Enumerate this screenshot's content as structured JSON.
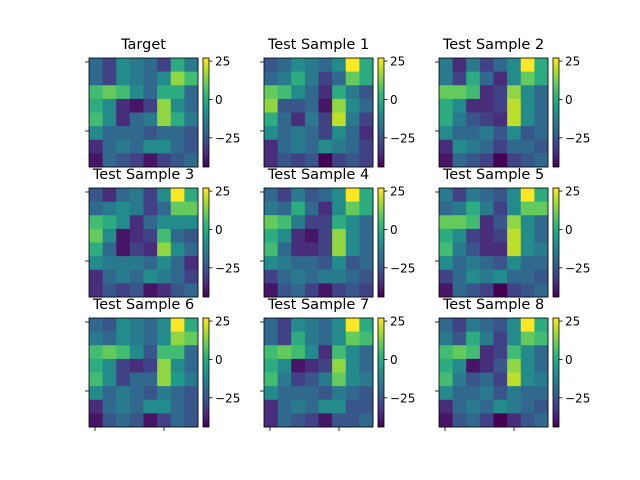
{
  "chart_data": [
    {
      "type": "heatmap",
      "title": "Target",
      "colorbar_ticks": [
        25,
        0,
        -25
      ],
      "vmin": -44,
      "vmax": 27,
      "values": [
        [
          -20,
          -30,
          -10,
          -15,
          -20,
          -30,
          0,
          -15
        ],
        [
          -20,
          -30,
          -10,
          -15,
          -20,
          -10,
          15,
          5
        ],
        [
          5,
          10,
          5,
          -10,
          -20,
          0,
          0,
          -20
        ],
        [
          0,
          -10,
          -35,
          -40,
          -30,
          15,
          -10,
          -20
        ],
        [
          5,
          -10,
          -35,
          -20,
          -15,
          15,
          0,
          -15
        ],
        [
          -10,
          -20,
          -20,
          -20,
          -25,
          -20,
          -20,
          -25
        ],
        [
          -35,
          -20,
          -15,
          -20,
          -10,
          -10,
          -20,
          -25
        ],
        [
          -40,
          -20,
          -25,
          -30,
          -40,
          -30,
          -25,
          -20
        ]
      ]
    },
    {
      "type": "heatmap",
      "title": "Test Sample 1",
      "colorbar_ticks": [
        25,
        0,
        -25
      ],
      "vmin": -44,
      "vmax": 27,
      "values": [
        [
          -25,
          -20,
          -10,
          -15,
          -20,
          -10,
          27,
          0
        ],
        [
          -20,
          -15,
          0,
          -15,
          -30,
          -20,
          10,
          0
        ],
        [
          10,
          5,
          -10,
          -20,
          -35,
          0,
          -15,
          -25
        ],
        [
          15,
          -25,
          -25,
          -20,
          -40,
          15,
          -10,
          -20
        ],
        [
          0,
          -20,
          -35,
          -15,
          -30,
          20,
          -15,
          -30
        ],
        [
          -10,
          -20,
          -15,
          -20,
          -30,
          -10,
          -20,
          -35
        ],
        [
          -35,
          -20,
          -15,
          -20,
          -10,
          -15,
          -20,
          -30
        ],
        [
          -35,
          -25,
          -30,
          -25,
          -44,
          -30,
          -25,
          -30
        ]
      ]
    },
    {
      "type": "heatmap",
      "title": "Test Sample 2",
      "colorbar_ticks": [
        25,
        0,
        -25
      ],
      "vmin": -44,
      "vmax": 27,
      "values": [
        [
          -15,
          -35,
          -15,
          -30,
          -20,
          -10,
          27,
          0
        ],
        [
          -15,
          -30,
          0,
          -20,
          -35,
          -10,
          10,
          0
        ],
        [
          10,
          10,
          5,
          -35,
          -30,
          15,
          -10,
          -20
        ],
        [
          0,
          -10,
          -35,
          -35,
          -30,
          20,
          -10,
          -20
        ],
        [
          0,
          -15,
          -25,
          -30,
          -35,
          20,
          -10,
          -20
        ],
        [
          -10,
          -20,
          -20,
          -15,
          -25,
          -10,
          -25,
          -20
        ],
        [
          -35,
          -10,
          -15,
          -20,
          -30,
          -20,
          -20,
          -25
        ],
        [
          -40,
          -20,
          -25,
          -30,
          -44,
          -30,
          -25,
          -20
        ]
      ]
    },
    {
      "type": "heatmap",
      "title": "Test Sample 3",
      "colorbar_ticks": [
        25,
        0,
        -25
      ],
      "vmin": -44,
      "vmax": 27,
      "values": [
        [
          -25,
          -35,
          -20,
          -15,
          -30,
          -10,
          27,
          0
        ],
        [
          -20,
          -15,
          -10,
          -15,
          -30,
          -20,
          10,
          10
        ],
        [
          5,
          0,
          -10,
          -35,
          -20,
          -10,
          -10,
          -10
        ],
        [
          10,
          -10,
          -40,
          -35,
          -30,
          5,
          -20,
          -25
        ],
        [
          0,
          -20,
          -40,
          -30,
          -35,
          15,
          -10,
          -20
        ],
        [
          -10,
          -15,
          -15,
          -15,
          -20,
          -10,
          -20,
          -35
        ],
        [
          -35,
          -20,
          -15,
          -20,
          -10,
          -15,
          -20,
          -30
        ],
        [
          -35,
          -25,
          -30,
          -25,
          -40,
          -35,
          -25,
          -20
        ]
      ]
    },
    {
      "type": "heatmap",
      "title": "Test Sample 4",
      "colorbar_ticks": [
        25,
        0,
        -25
      ],
      "vmin": -44,
      "vmax": 27,
      "values": [
        [
          -20,
          -30,
          -15,
          -25,
          -20,
          -10,
          27,
          0
        ],
        [
          -15,
          -20,
          0,
          -20,
          -35,
          -10,
          10,
          0
        ],
        [
          10,
          5,
          -15,
          -30,
          -30,
          0,
          -10,
          -20
        ],
        [
          0,
          -10,
          -35,
          -40,
          -30,
          15,
          -10,
          -20
        ],
        [
          5,
          -20,
          -35,
          -35,
          -30,
          15,
          -10,
          -20
        ],
        [
          -10,
          -15,
          -20,
          -20,
          -25,
          -10,
          -25,
          -20
        ],
        [
          -30,
          -20,
          -15,
          -20,
          -15,
          -15,
          -20,
          -25
        ],
        [
          -40,
          -25,
          -20,
          -30,
          -40,
          -30,
          -25,
          -30
        ]
      ]
    },
    {
      "type": "heatmap",
      "title": "Test Sample 5",
      "colorbar_ticks": [
        25,
        0,
        -25
      ],
      "vmin": -44,
      "vmax": 27,
      "values": [
        [
          -15,
          -30,
          -15,
          -20,
          -25,
          -10,
          27,
          0
        ],
        [
          -20,
          -15,
          0,
          -15,
          -30,
          -10,
          10,
          10
        ],
        [
          10,
          10,
          5,
          -35,
          -25,
          15,
          -10,
          -20
        ],
        [
          0,
          -10,
          -30,
          -35,
          -30,
          20,
          -10,
          -20
        ],
        [
          5,
          -15,
          -25,
          -35,
          -35,
          20,
          -10,
          -15
        ],
        [
          -10,
          -20,
          -15,
          -20,
          -25,
          -10,
          -20,
          -20
        ],
        [
          -30,
          -20,
          -10,
          -15,
          -10,
          -20,
          -20,
          -25
        ],
        [
          -40,
          -20,
          -25,
          -30,
          -44,
          -30,
          -25,
          -20
        ]
      ]
    },
    {
      "type": "heatmap",
      "title": "Test Sample 6",
      "colorbar_ticks": [
        25,
        0,
        -25
      ],
      "vmin": -44,
      "vmax": 27,
      "values": [
        [
          -20,
          -25,
          -10,
          -15,
          -20,
          -10,
          27,
          0
        ],
        [
          -15,
          -20,
          -10,
          -15,
          -20,
          -10,
          15,
          10
        ],
        [
          5,
          10,
          5,
          -10,
          -25,
          5,
          5,
          -20
        ],
        [
          0,
          -10,
          -30,
          -35,
          -30,
          15,
          -10,
          -20
        ],
        [
          5,
          -10,
          -30,
          -20,
          -20,
          15,
          -5,
          -15
        ],
        [
          -10,
          -20,
          -15,
          -20,
          -25,
          -15,
          -20,
          -25
        ],
        [
          -35,
          -20,
          -15,
          -20,
          -10,
          -10,
          -20,
          -25
        ],
        [
          -40,
          -25,
          -20,
          -25,
          -40,
          -30,
          -20,
          -25
        ]
      ]
    },
    {
      "type": "heatmap",
      "title": "Test Sample 7",
      "colorbar_ticks": [
        25,
        0,
        -25
      ],
      "vmin": -44,
      "vmax": 27,
      "values": [
        [
          -20,
          -30,
          -10,
          -15,
          -20,
          -10,
          27,
          0
        ],
        [
          -20,
          -30,
          0,
          -15,
          -20,
          -10,
          10,
          5
        ],
        [
          5,
          10,
          5,
          -10,
          -35,
          5,
          -10,
          -20
        ],
        [
          0,
          -10,
          -40,
          -35,
          -30,
          15,
          -10,
          -20
        ],
        [
          5,
          -15,
          -30,
          -25,
          -15,
          10,
          -10,
          -15
        ],
        [
          -10,
          -20,
          -20,
          -20,
          -25,
          -15,
          -20,
          -25
        ],
        [
          -35,
          -20,
          -15,
          -20,
          -10,
          -10,
          -25,
          -25
        ],
        [
          -35,
          -20,
          -25,
          -30,
          -40,
          -25,
          -25,
          -20
        ]
      ]
    },
    {
      "type": "heatmap",
      "title": "Test Sample 8",
      "colorbar_ticks": [
        25,
        0,
        -25
      ],
      "vmin": -44,
      "vmax": 27,
      "values": [
        [
          -20,
          -30,
          -15,
          -20,
          -25,
          -10,
          27,
          0
        ],
        [
          -15,
          -25,
          0,
          -15,
          -30,
          -10,
          10,
          5
        ],
        [
          5,
          10,
          5,
          -35,
          -30,
          5,
          -10,
          -20
        ],
        [
          0,
          -10,
          -40,
          -35,
          -25,
          15,
          -10,
          -20
        ],
        [
          5,
          -15,
          -25,
          -20,
          -30,
          20,
          -10,
          -15
        ],
        [
          -10,
          -20,
          -20,
          -15,
          -25,
          -15,
          -20,
          -20
        ],
        [
          -35,
          -20,
          -15,
          -20,
          -10,
          -15,
          -20,
          -25
        ],
        [
          -40,
          -25,
          -20,
          -30,
          -44,
          -35,
          -25,
          -20
        ]
      ]
    }
  ],
  "colormap": [
    "#440154",
    "#482878",
    "#3e4989",
    "#31688e",
    "#26828e",
    "#1f9e89",
    "#35b779",
    "#6ece58",
    "#b5de2b",
    "#fde725"
  ]
}
